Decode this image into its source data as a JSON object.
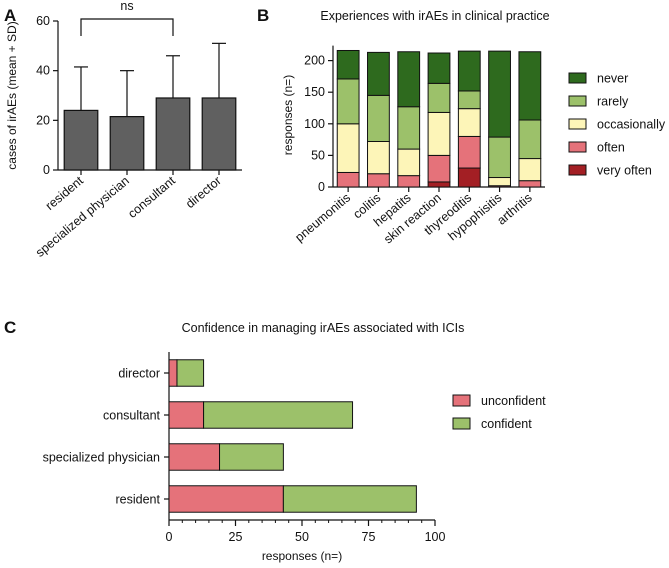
{
  "chart_data": [
    {
      "panel": "A",
      "type": "bar",
      "title": "",
      "categories": [
        "resident",
        "specialized physician",
        "consultant",
        "director"
      ],
      "values": [
        24,
        21.5,
        29,
        29
      ],
      "error_upper": [
        41.5,
        40,
        46,
        51
      ],
      "ylabel": "cases of irAEs (mean + SD)",
      "xlabel": "",
      "ylim": [
        0,
        60
      ],
      "yticks": [
        0,
        20,
        40,
        60
      ],
      "bar_color": "#606060",
      "annotation": {
        "text": "ns",
        "from": "resident",
        "to": "consultant"
      }
    },
    {
      "panel": "B",
      "type": "bar",
      "stacked": true,
      "title": "Experiences with irAEs in clinical practice",
      "categories": [
        "pneumonitis",
        "colitis",
        "hepatits",
        "skin reaction",
        "thyreoditis",
        "hypophisitis",
        "arthritis"
      ],
      "series": [
        {
          "name": "very often",
          "color": "#a31f24",
          "values": [
            0,
            0,
            0,
            8,
            30,
            0,
            0
          ]
        },
        {
          "name": "often",
          "color": "#e5727a",
          "values": [
            23,
            21,
            18,
            42,
            50,
            2,
            10
          ]
        },
        {
          "name": "occasionally",
          "color": "#fdf5b8",
          "values": [
            77,
            51,
            42,
            68,
            44,
            13,
            35
          ]
        },
        {
          "name": "rarely",
          "color": "#9cc16a",
          "values": [
            71,
            73,
            67,
            46,
            28,
            64,
            61
          ]
        },
        {
          "name": "never",
          "color": "#2e6a1e",
          "values": [
            45,
            68,
            87,
            48,
            63,
            136,
            108
          ]
        }
      ],
      "legend_order": [
        "never",
        "rarely",
        "occasionally",
        "often",
        "very often"
      ],
      "ylabel": "responses (n=)",
      "xlabel": "",
      "ylim": [
        0,
        200
      ],
      "yticks": [
        0,
        50,
        100,
        150,
        200
      ],
      "legend_position": "right"
    },
    {
      "panel": "C",
      "type": "bar",
      "orientation": "horizontal",
      "stacked": true,
      "title": "Confidence in managing irAEs associated with ICIs",
      "categories": [
        "director",
        "consultant",
        "specialized physician",
        "resident"
      ],
      "series": [
        {
          "name": "unconfident",
          "color": "#e5727a",
          "values": [
            3,
            13,
            19,
            43
          ]
        },
        {
          "name": "confident",
          "color": "#9cc16a",
          "values": [
            10,
            56,
            24,
            50
          ]
        }
      ],
      "xlabel": "responses (n=)",
      "ylabel": "",
      "xlim": [
        0,
        100
      ],
      "xticks": [
        0,
        25,
        50,
        75,
        100
      ],
      "legend_position": "right"
    }
  ],
  "labels": {
    "panel_a": "A",
    "panel_b": "B",
    "panel_c": "C"
  }
}
